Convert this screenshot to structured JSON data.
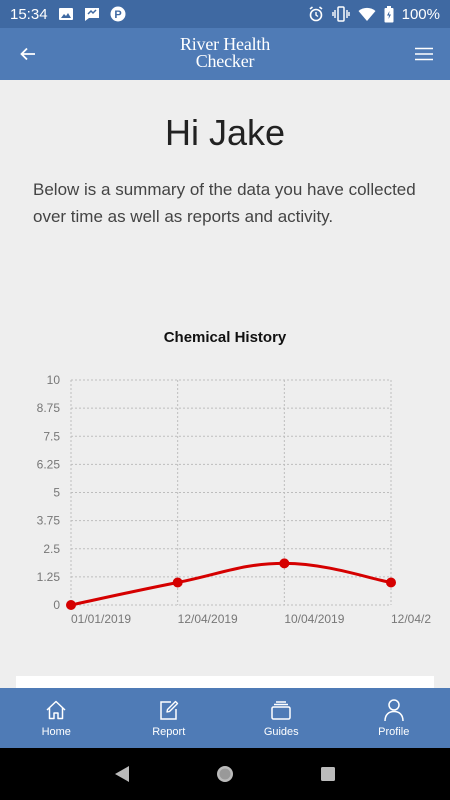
{
  "status_bar": {
    "time": "15:34",
    "battery": "100%",
    "icons_left": [
      "image-icon",
      "chat-icon",
      "p-icon"
    ],
    "icons_right": [
      "alarm-icon",
      "vibrate-icon",
      "wifi-icon",
      "battery-icon"
    ]
  },
  "header": {
    "logo_line1": "River Health",
    "logo_line2": "Checker"
  },
  "main": {
    "greeting": "Hi Jake",
    "summary": "Below is a summary of the data you have collected over time as well as reports and activity."
  },
  "chart_data": {
    "type": "line",
    "title": "Chemical History",
    "xlabel": "",
    "ylabel": "",
    "categories": [
      "01/01/2019",
      "12/04/2019",
      "10/04/2019",
      "12/04/2"
    ],
    "series": [
      {
        "values": [
          0,
          1.0,
          1.85,
          1.0
        ],
        "color": "#d50000"
      }
    ],
    "ylim": [
      0,
      10
    ],
    "yticks": [
      "10",
      "8.75",
      "7.5",
      "6.25",
      "5",
      "3.75",
      "2.5",
      "1.25",
      "0"
    ],
    "ytick_values": [
      10,
      8.75,
      7.5,
      6.25,
      5,
      3.75,
      2.5,
      1.25,
      0
    ],
    "grid": true
  },
  "bottom_nav": {
    "items": [
      {
        "label": "Home",
        "icon": "home-icon"
      },
      {
        "label": "Report",
        "icon": "edit-icon"
      },
      {
        "label": "Guides",
        "icon": "stack-icon"
      },
      {
        "label": "Profile",
        "icon": "user-icon"
      }
    ]
  },
  "colors": {
    "primary": "#4f7bb6",
    "status_bar": "#3f69a2",
    "line": "#d50000",
    "background": "#eeeeee"
  }
}
